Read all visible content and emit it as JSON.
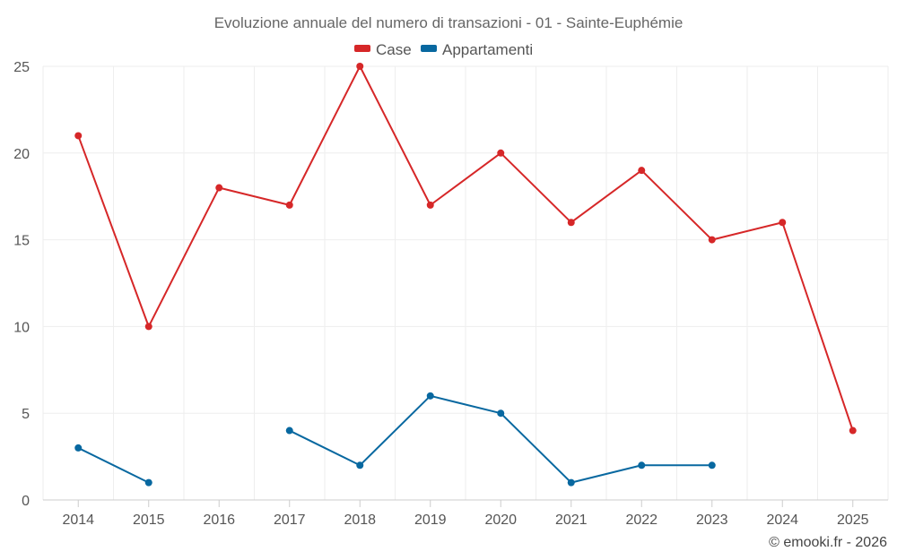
{
  "chart_data": {
    "type": "line",
    "title": "Evoluzione annuale del numero di transazioni - 01 - Sainte-Euphémie",
    "x": [
      "2014",
      "2015",
      "2016",
      "2017",
      "2018",
      "2019",
      "2020",
      "2021",
      "2022",
      "2023",
      "2024",
      "2025"
    ],
    "series": [
      {
        "name": "Case",
        "color": "#d62728",
        "values": [
          21,
          10,
          18,
          17,
          25,
          17,
          20,
          16,
          19,
          15,
          16,
          4
        ]
      },
      {
        "name": "Appartamenti",
        "color": "#0868a0",
        "values": [
          3,
          1,
          null,
          4,
          2,
          6,
          5,
          1,
          2,
          2,
          null,
          null
        ]
      }
    ],
    "ylim": [
      0,
      25
    ],
    "yticks": [
      0,
      5,
      10,
      15,
      20,
      25
    ],
    "xlabel": "",
    "ylabel": "",
    "grid": true,
    "legend": "top-center"
  },
  "credit": "© emooki.fr - 2026"
}
